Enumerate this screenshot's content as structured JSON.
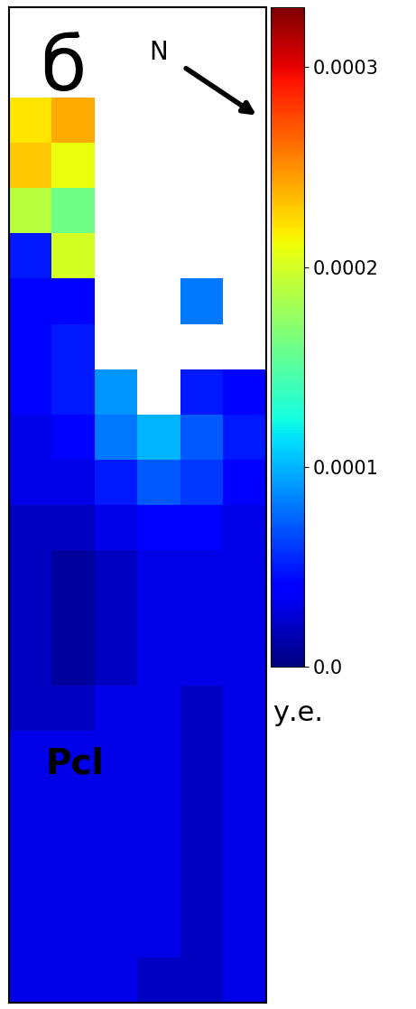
{
  "chart_data": {
    "type": "heatmap",
    "title": "б",
    "annotations": [
      "N",
      "Pcl"
    ],
    "tick_labels": false,
    "cells": [
      [
        null,
        null,
        null,
        null,
        null,
        null
      ],
      [
        null,
        null,
        null,
        null,
        null,
        null
      ],
      [
        0.00022,
        0.00024,
        null,
        null,
        null,
        null
      ],
      [
        0.00023,
        0.00021,
        null,
        null,
        null,
        null
      ],
      [
        0.00019,
        0.00016,
        null,
        null,
        null,
        null
      ],
      [
        5e-05,
        0.0002,
        null,
        null,
        null,
        null
      ],
      [
        4e-05,
        4e-05,
        null,
        null,
        8e-05,
        null
      ],
      [
        4e-05,
        5e-05,
        null,
        null,
        null,
        null
      ],
      [
        4e-05,
        5e-05,
        9e-05,
        null,
        5e-05,
        4e-05
      ],
      [
        3e-05,
        4e-05,
        8e-05,
        0.0001,
        7e-05,
        5e-05
      ],
      [
        3e-05,
        3e-05,
        5e-05,
        7e-05,
        6e-05,
        4e-05
      ],
      [
        2e-05,
        2e-05,
        3e-05,
        4e-05,
        4e-05,
        3e-05
      ],
      [
        2e-05,
        1e-05,
        2e-05,
        3e-05,
        3e-05,
        3e-05
      ],
      [
        2e-05,
        1e-05,
        2e-05,
        3e-05,
        3e-05,
        3e-05
      ],
      [
        2e-05,
        1e-05,
        2e-05,
        3e-05,
        3e-05,
        3e-05
      ],
      [
        2e-05,
        2e-05,
        3e-05,
        3e-05,
        2e-05,
        3e-05
      ],
      [
        3e-05,
        3e-05,
        3e-05,
        3e-05,
        2e-05,
        3e-05
      ],
      [
        3e-05,
        3e-05,
        3e-05,
        3e-05,
        2e-05,
        3e-05
      ],
      [
        3e-05,
        3e-05,
        3e-05,
        3e-05,
        2e-05,
        3e-05
      ],
      [
        3e-05,
        3e-05,
        3e-05,
        3e-05,
        2e-05,
        3e-05
      ],
      [
        3e-05,
        3e-05,
        3e-05,
        3e-05,
        2e-05,
        3e-05
      ],
      [
        3e-05,
        3e-05,
        3e-05,
        2e-05,
        2e-05,
        3e-05
      ]
    ],
    "colorbar": {
      "range": [
        0,
        0.00033
      ],
      "ticks": [
        {
          "value": 0,
          "label": "0.0"
        },
        0.0001,
        0.0002,
        0.0003
      ],
      "label": "у.е."
    }
  }
}
